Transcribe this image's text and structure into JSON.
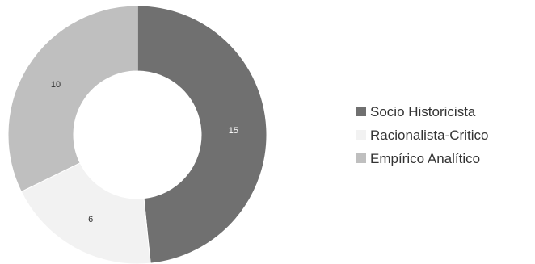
{
  "chart_data": {
    "type": "pie",
    "donut": true,
    "categories": [
      "Socio Historicista",
      "Racionalista-Critico",
      "Empírico Analítico"
    ],
    "values": [
      15,
      6,
      10
    ],
    "colors": [
      "#707070",
      "#f2f2f2",
      "#bfbfbf"
    ],
    "label_colors": [
      "#ffffff",
      "#333333",
      "#333333"
    ],
    "start_angle_deg": 0,
    "direction": "clockwise",
    "legend_position": "right",
    "title": ""
  }
}
